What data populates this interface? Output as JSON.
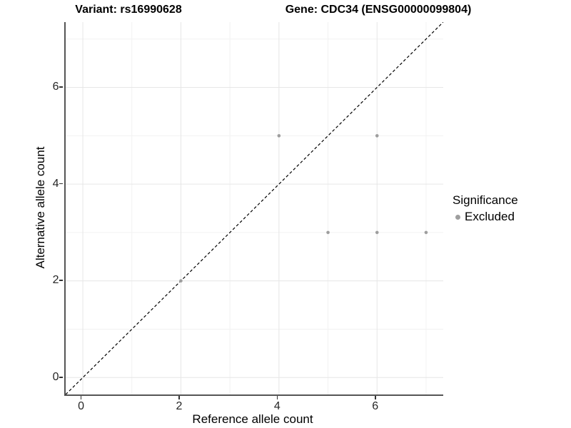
{
  "header": {
    "variant_title": "Variant: rs16990628",
    "gene_title": "Gene: CDC34 (ENSG00000099804)"
  },
  "chart_data": {
    "type": "scatter",
    "xlabel": "Reference allele count",
    "ylabel": "Alternative allele count",
    "xlim": [
      -0.35,
      7.35
    ],
    "ylim": [
      -0.35,
      7.35
    ],
    "x_ticks": [
      0,
      2,
      4,
      6
    ],
    "y_ticks": [
      0,
      2,
      4,
      6
    ],
    "x_minor": [
      1,
      3,
      5,
      7
    ],
    "y_minor": [
      1,
      3,
      5,
      7
    ],
    "grid": {
      "major": "#e6e6e6",
      "minor": "#f2f2f2",
      "on": true
    },
    "series": [
      {
        "name": "Excluded",
        "color": "#9e9e9e",
        "points": [
          [
            2,
            2
          ],
          [
            5,
            3
          ],
          [
            6,
            3
          ],
          [
            7,
            3
          ],
          [
            4,
            5
          ],
          [
            6,
            5
          ]
        ]
      }
    ],
    "abline": {
      "slope": 1,
      "intercept": 0,
      "style": "dashed",
      "color": "#000000"
    },
    "legend": {
      "title": "Significance",
      "position": "right",
      "entries": [
        {
          "label": "Excluded",
          "color": "#9e9e9e"
        }
      ]
    }
  }
}
